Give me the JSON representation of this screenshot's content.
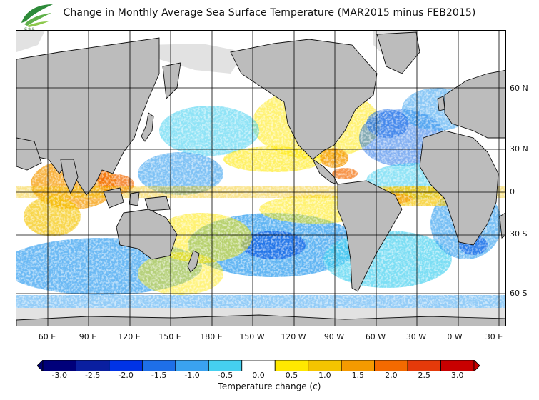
{
  "header": {
    "title": "Change in Monthly Average Sea Surface Temperature (MAR2015 minus FEB2015)"
  },
  "map": {
    "latitude_labels": [
      "60 N",
      "30 N",
      "0",
      "30 S",
      "60 S"
    ],
    "longitude_labels": [
      "60 E",
      "90 E",
      "120 E",
      "150 E",
      "180 E",
      "150 W",
      "120 W",
      "90 W",
      "60 W",
      "30 W",
      "0 W",
      "30 E"
    ]
  },
  "colorbar": {
    "title": "Temperature change  (c)",
    "ticks": [
      "-3.0",
      "-2.5",
      "-2.0",
      "-1.5",
      "-1.0",
      "-0.5",
      "0.0",
      "0.5",
      "1.0",
      "1.5",
      "2.0",
      "2.5",
      "3.0"
    ],
    "colors": [
      "#00007a",
      "#0a1fa0",
      "#0033e6",
      "#1e6fe8",
      "#3aa2f0",
      "#45d0f0",
      "#ffffff",
      "#ffe800",
      "#f5c400",
      "#f59a00",
      "#f36a00",
      "#e53a0a",
      "#c80000"
    ],
    "under_color": "#000070",
    "over_color": "#c80000"
  },
  "colors": {
    "land": "#bcbcbc",
    "ice": "#e2e2e2",
    "coast": "#111111"
  }
}
